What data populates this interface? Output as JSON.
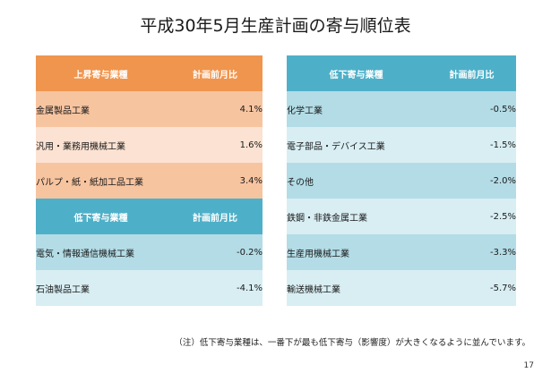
{
  "title": "平成30年5月生産計画の寄与順位表",
  "left_top": {
    "header_name": "上昇寄与業種",
    "header_value": "計画前月比",
    "rows": [
      {
        "name": "金属製品工業",
        "value": "4.1%"
      },
      {
        "name": "汎用・業務用機械工業",
        "value": "1.6%"
      },
      {
        "name": "パルプ・紙・紙加工品工業",
        "value": "3.4%"
      }
    ]
  },
  "left_bottom": {
    "header_name": "低下寄与業種",
    "header_value": "計画前月比",
    "rows": [
      {
        "name": "電気・情報通信機械工業",
        "value": "-0.2%"
      },
      {
        "name": "石油製品工業",
        "value": "-4.1%"
      }
    ]
  },
  "right": {
    "header_name": "低下寄与業種",
    "header_value": "計画前月比",
    "rows": [
      {
        "name": "化学工業",
        "value": "-0.5%"
      },
      {
        "name": "電子部品・デバイス工業",
        "value": "-1.5%"
      },
      {
        "name": "その他",
        "value": "-2.0%"
      },
      {
        "name": "鉄鋼・非鉄金属工業",
        "value": "-2.5%"
      },
      {
        "name": "生産用機械工業",
        "value": "-3.3%"
      },
      {
        "name": "輸送機械工業",
        "value": "-5.7%"
      }
    ]
  },
  "note": "（注）低下寄与業種は、一番下が最も低下寄与（影響度）が大きくなるように並んでいます。",
  "page_number": "17",
  "colors": {
    "orange_header": "#f0954e",
    "orange_row": "#f7c4a0",
    "blue_header": "#4eb0c8",
    "blue_row": "#b3dce6"
  }
}
